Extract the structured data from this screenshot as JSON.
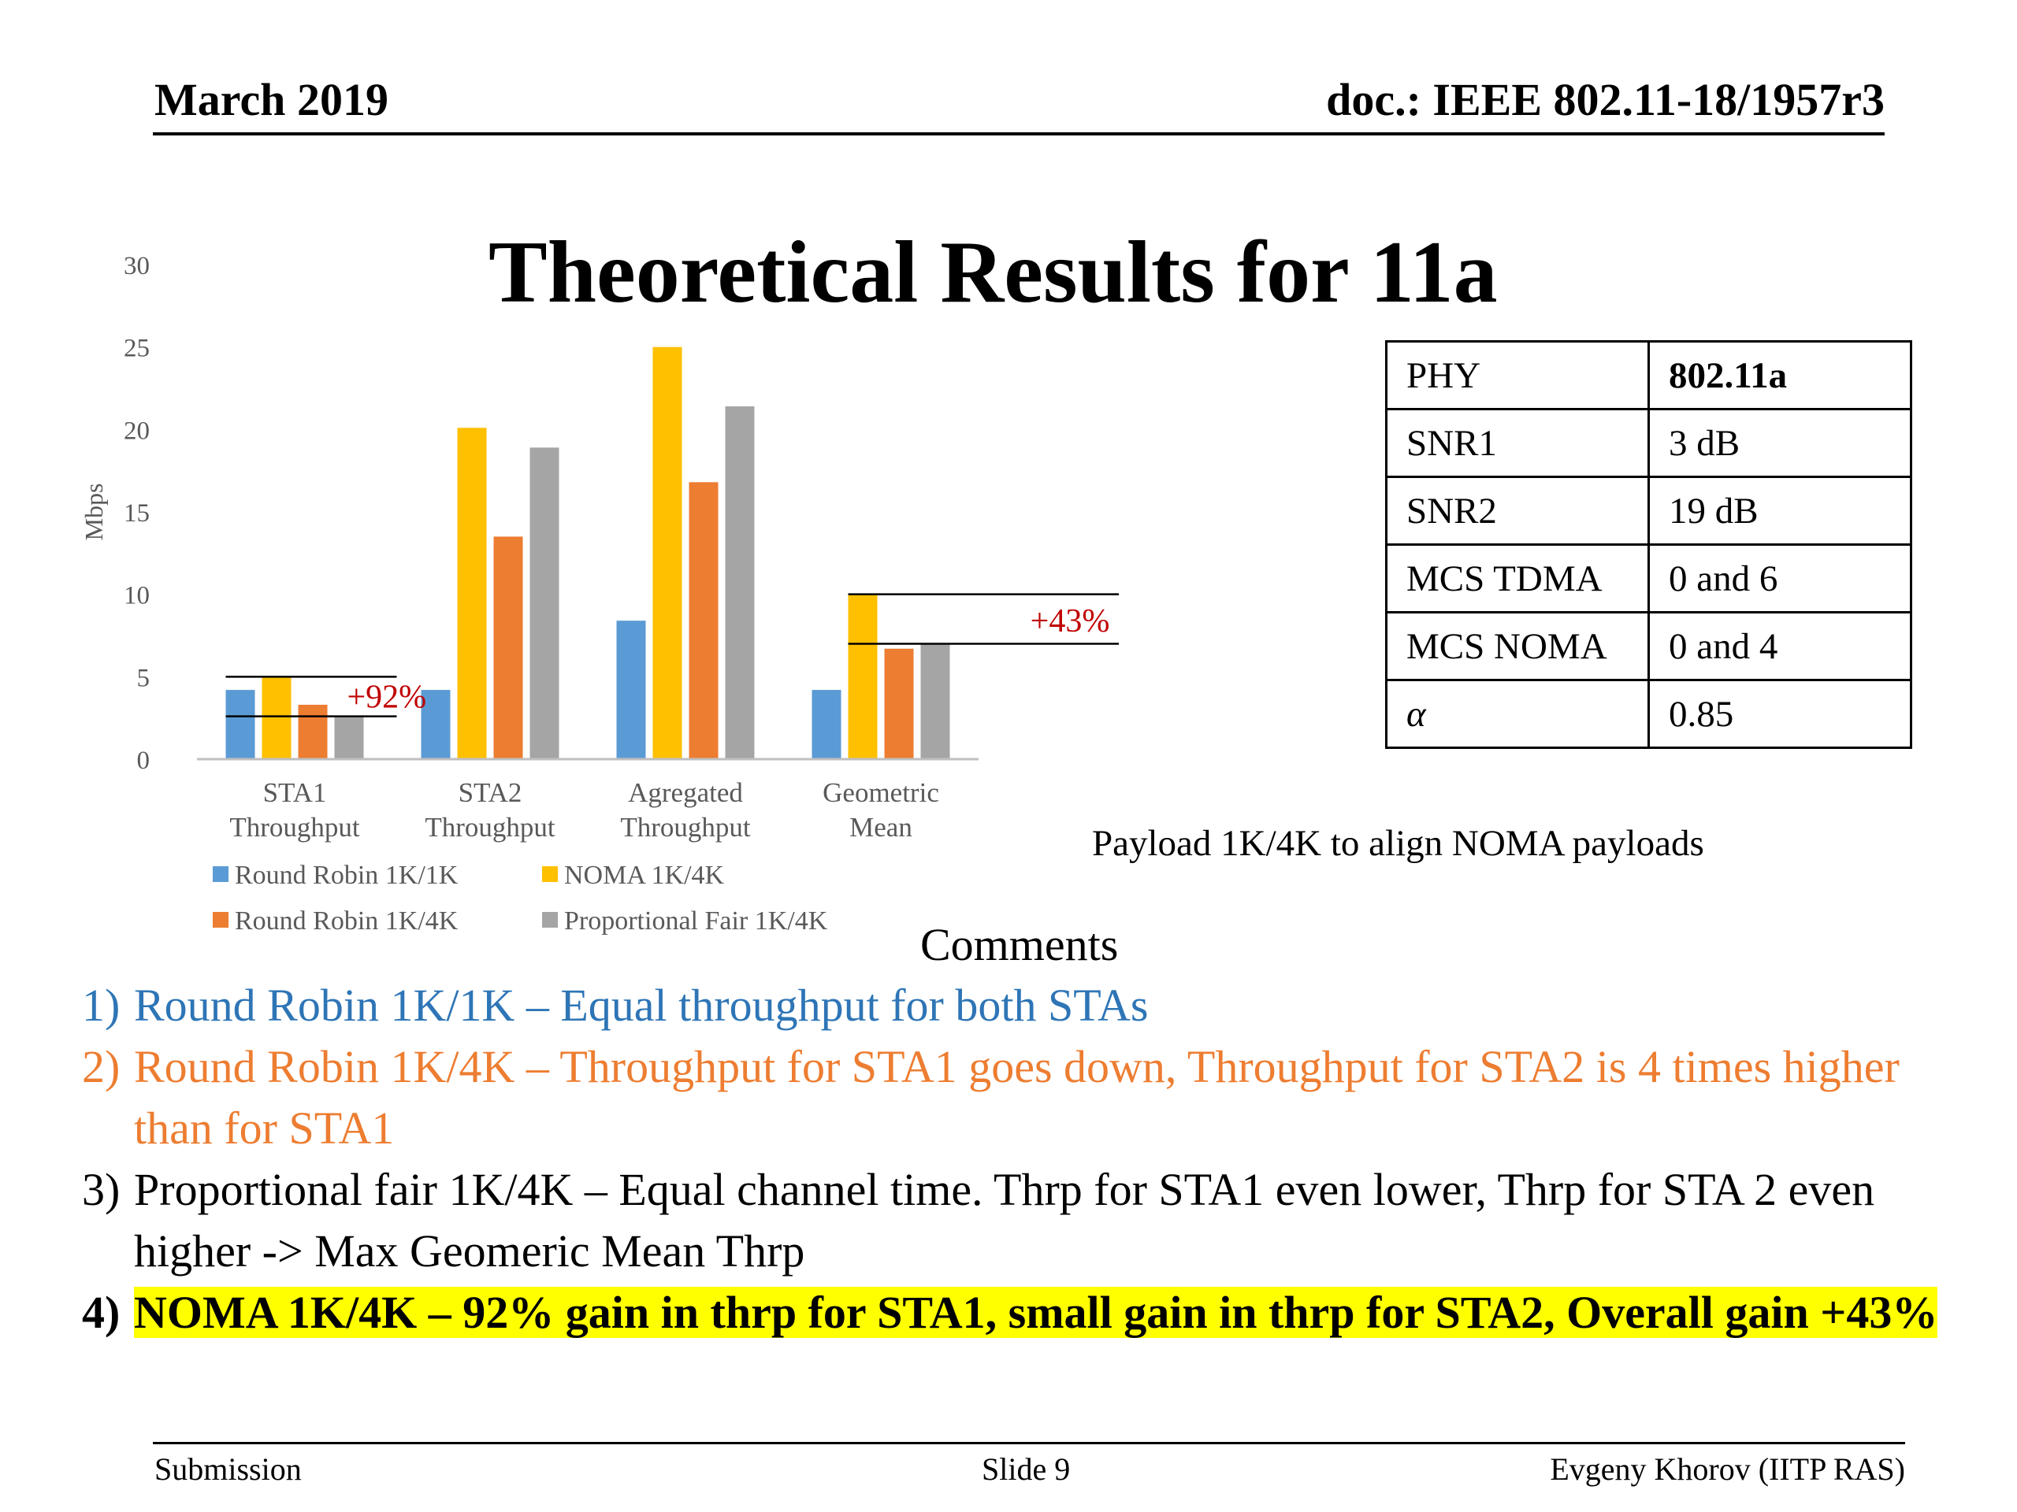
{
  "header": {
    "date": "March 2019",
    "doc": "doc.: IEEE 802.11-18/1957r3"
  },
  "title": "Theoretical Results for 11a",
  "colors": {
    "round_robin_1k1k": "#5b9bd5",
    "noma_1k4k": "#ffc000",
    "round_robin_1k4k": "#ed7d31",
    "proportional_fair_1k4k": "#a5a5a5",
    "annotation": "#c00000",
    "highlight": "#ffff00",
    "comment_1": "#2e75b6",
    "comment_2": "#ed7d31"
  },
  "chart_data": {
    "type": "bar",
    "ylabel": "Mbps",
    "ylim": [
      0,
      30
    ],
    "yticks": [
      0,
      5,
      10,
      15,
      20,
      25,
      30
    ],
    "categories": [
      [
        "STA1",
        "Throughput"
      ],
      [
        "STA2",
        "Throughput"
      ],
      [
        "Agregated",
        "Throughput"
      ],
      [
        "Geometric",
        "Mean"
      ]
    ],
    "series": [
      {
        "name": "Round Robin 1K/1K",
        "values": [
          4.2,
          4.2,
          8.4,
          4.2
        ]
      },
      {
        "name": "NOMA 1K/4K",
        "values": [
          5.0,
          20.1,
          25.0,
          10.0
        ]
      },
      {
        "name": "Round Robin 1K/4K",
        "values": [
          3.3,
          13.5,
          16.8,
          6.7
        ]
      },
      {
        "name": "Proportional Fair 1K/4K",
        "values": [
          2.6,
          18.9,
          21.4,
          7.0
        ]
      }
    ],
    "grid": false,
    "legend": "bottom",
    "annotations": [
      {
        "text": "+92%",
        "category": 0,
        "from": 2.6,
        "to": 5.0
      },
      {
        "text": "+43%",
        "category": 3,
        "from": 7.0,
        "to": 10.0
      }
    ]
  },
  "table": {
    "rows": [
      [
        "PHY",
        "802.11a"
      ],
      [
        "SNR1",
        "3 dB"
      ],
      [
        "SNR2",
        "19 dB"
      ],
      [
        "MCS TDMA",
        "0 and 6"
      ],
      [
        "MCS NOMA",
        "0 and 4"
      ],
      [
        "α",
        "0.85"
      ]
    ]
  },
  "payload_note": "Payload 1K/4K to align NOMA payloads",
  "comments_title": "Comments",
  "comments": [
    {
      "num": "1)",
      "text": "Round Robin 1K/1K – Equal throughput for both STAs"
    },
    {
      "num": "2)",
      "text": "Round Robin 1K/4K – Throughput for STA1 goes down, Throughput for STA2 is 4 times higher than for STA1"
    },
    {
      "num": "3)",
      "text": "Proportional fair 1K/4K – Equal channel time. Thrp for STA1 even lower, Thrp for STA 2 even higher -> Max Geomeric Mean Thrp"
    },
    {
      "num": "4)",
      "text": "NOMA 1K/4K – 92% gain in thrp for STA1, small gain in thrp for STA2, Overall gain +43%"
    }
  ],
  "footer": {
    "left": "Submission",
    "center": "Slide 9",
    "right": "Evgeny Khorov (IITP RAS)"
  }
}
